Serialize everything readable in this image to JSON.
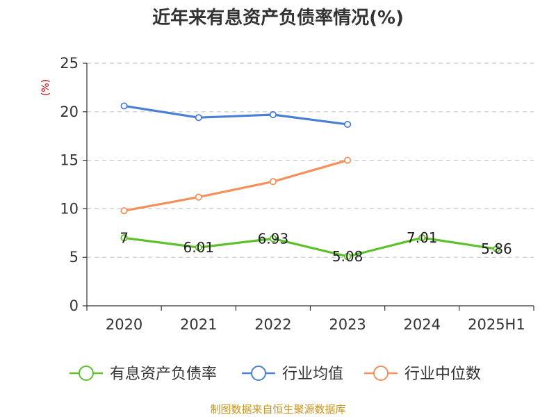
{
  "chart_data": {
    "type": "line",
    "title": "近年来有息资产负债率情况(%)",
    "ylabel": "(%)",
    "xlabel": "",
    "categories": [
      "2020",
      "2021",
      "2022",
      "2023",
      "2024",
      "2025H1"
    ],
    "ylim": [
      0,
      25
    ],
    "yticks": [
      "0",
      "5",
      "10",
      "15",
      "20",
      "25"
    ],
    "grid": true,
    "legend_position": "bottom",
    "series": [
      {
        "name": "有息资产负债率",
        "color": "#5cc12a",
        "values": [
          7,
          6.01,
          6.93,
          5.08,
          7.01,
          5.86
        ],
        "labels": [
          "7",
          "6.01",
          "6.93",
          "5.08",
          "7.01",
          "5.86"
        ]
      },
      {
        "name": "行业均值",
        "color": "#4a7fd6",
        "values": [
          20.6,
          19.4,
          19.7,
          18.7,
          null,
          null
        ]
      },
      {
        "name": "行业中位数",
        "color": "#f5905a",
        "values": [
          9.8,
          11.2,
          12.8,
          15.0,
          null,
          null
        ]
      }
    ]
  },
  "source_text": "制图数据来自恒生聚源数据库"
}
